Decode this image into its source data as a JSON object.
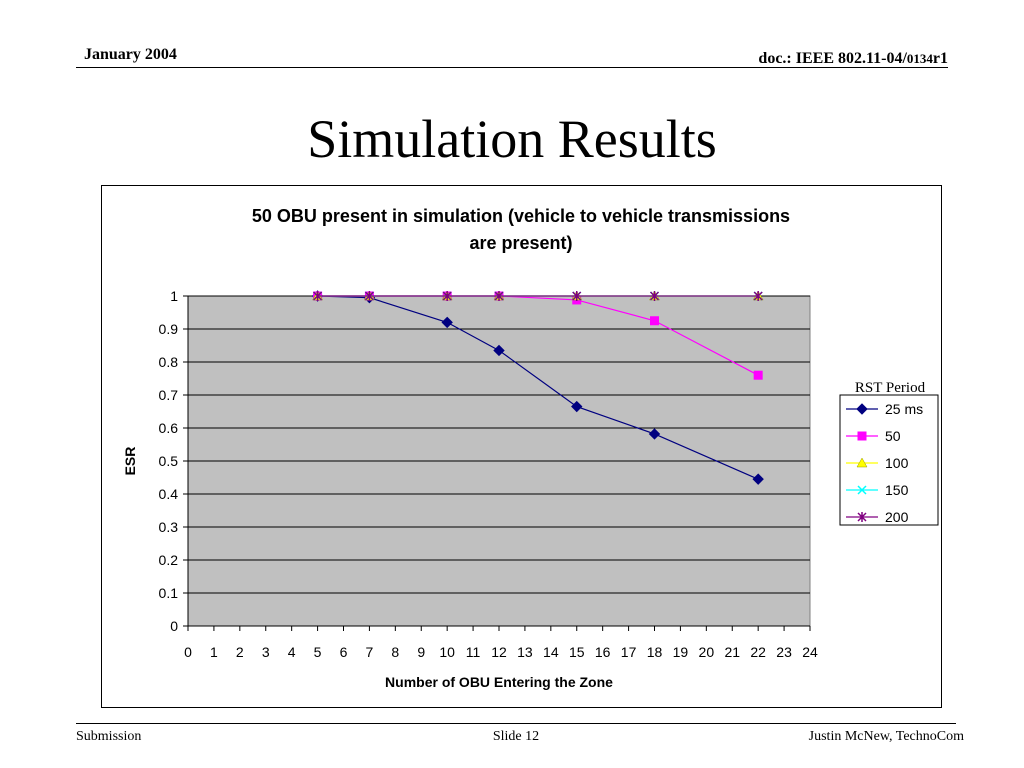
{
  "header": {
    "date": "January 2004",
    "doc_prefix": "doc.: IEEE 802.11-04/",
    "doc_number": "0134",
    "doc_suffix": "r1"
  },
  "slide": {
    "title": "Simulation Results"
  },
  "footer": {
    "left": "Submission",
    "center": "Slide 12",
    "right": "Justin McNew, TechnoCom"
  },
  "chart_data": {
    "type": "line",
    "title_lines": [
      "50 OBU present in simulation (vehicle to vehicle transmissions",
      "are present)"
    ],
    "xlabel": "Number of OBU Entering the Zone",
    "ylabel": "ESR",
    "xlim": [
      0,
      24
    ],
    "ylim": [
      0,
      1
    ],
    "x_ticks": [
      0,
      1,
      2,
      3,
      4,
      5,
      6,
      7,
      8,
      9,
      10,
      11,
      12,
      13,
      14,
      15,
      16,
      17,
      18,
      19,
      20,
      21,
      22,
      23,
      24
    ],
    "y_ticks": [
      "0",
      "0.1",
      "0.2",
      "0.3",
      "0.4",
      "0.5",
      "0.6",
      "0.7",
      "0.8",
      "0.9",
      "1"
    ],
    "grid": "horizontal",
    "plot_background": "#c0c0c0",
    "legend_title": "RST Period",
    "legend_position": "right",
    "series": [
      {
        "name": "25 ms",
        "color": "#000080",
        "marker": "diamond",
        "x": [
          5,
          7,
          10,
          12,
          15,
          18,
          22
        ],
        "y": [
          1.0,
          0.995,
          0.92,
          0.835,
          0.665,
          0.582,
          0.445
        ]
      },
      {
        "name": "50",
        "color": "#ff00ff",
        "marker": "square",
        "x": [
          5,
          7,
          10,
          12,
          15,
          18,
          22
        ],
        "y": [
          1.0,
          1.0,
          1.0,
          1.0,
          0.988,
          0.925,
          0.76
        ]
      },
      {
        "name": "100",
        "color": "#ffff00",
        "marker": "triangle",
        "x": [
          5,
          7,
          10,
          12,
          15,
          18,
          22
        ],
        "y": [
          1.0,
          1.0,
          1.0,
          1.0,
          1.0,
          1.0,
          1.0
        ]
      },
      {
        "name": "150",
        "color": "#00ffff",
        "marker": "x",
        "x": [
          5,
          7,
          10,
          12,
          15,
          18,
          22
        ],
        "y": [
          1.0,
          1.0,
          1.0,
          1.0,
          1.0,
          1.0,
          1.0
        ]
      },
      {
        "name": "200",
        "color": "#800080",
        "marker": "star",
        "x": [
          5,
          7,
          10,
          12,
          15,
          18,
          22
        ],
        "y": [
          1.0,
          1.0,
          1.0,
          1.0,
          1.0,
          1.0,
          1.0
        ]
      }
    ]
  }
}
